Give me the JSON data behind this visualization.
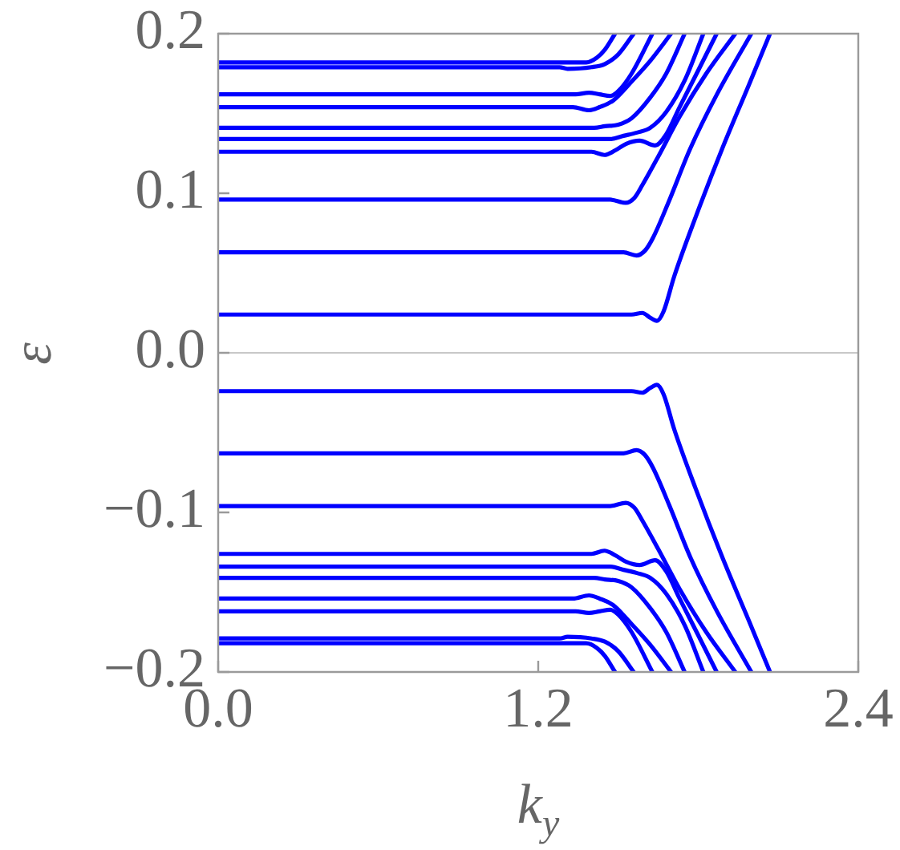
{
  "chart_data": {
    "type": "line",
    "xlabel": "k$_{y}$",
    "ylabel": "ε",
    "xlim": [
      0,
      2.4
    ],
    "ylim": [
      -0.2,
      0.2
    ],
    "xticks": [
      {
        "value": 0,
        "label": "0.0"
      },
      1.2,
      2.4
    ],
    "yticks": [
      {
        "value": -0.2,
        "label": "−0.2"
      },
      {
        "value": -0.1,
        "label": "−0.1"
      },
      {
        "value": 0,
        "label": "0.0"
      },
      0.1,
      0.2
    ],
    "ref_lines": [
      {
        "axis": "y",
        "value": 0,
        "color": "#c8c8c8"
      }
    ],
    "series": [
      {
        "color": "#0000ff",
        "x": [
          0,
          1.34,
          1.38,
          1.42,
          1.45,
          1.488
        ],
        "values": [
          0.182,
          0.182,
          0.182,
          0.185,
          0.19,
          0.2
        ]
      },
      {
        "color": "#0000ff",
        "x": [
          0,
          1.28,
          1.31,
          1.4,
          1.45,
          1.5,
          1.558
        ],
        "values": [
          0.179,
          0.179,
          0.178,
          0.179,
          0.181,
          0.187,
          0.2
        ]
      },
      {
        "color": "#0000ff",
        "x": [
          0,
          1.34,
          1.39,
          1.43,
          1.47,
          1.5,
          1.55,
          1.628
        ],
        "values": [
          0.162,
          0.162,
          0.163,
          0.162,
          0.161,
          0.164,
          0.175,
          0.2
        ]
      },
      {
        "color": "#0000ff",
        "x": [
          0,
          1.33,
          1.39,
          1.43,
          1.48,
          1.55,
          1.62,
          1.698
        ],
        "values": [
          0.154,
          0.154,
          0.152,
          0.154,
          0.158,
          0.17,
          0.183,
          0.2
        ]
      },
      {
        "color": "#0000ff",
        "x": [
          0,
          1.41,
          1.45,
          1.5,
          1.55,
          1.62,
          1.68,
          1.749
        ],
        "values": [
          0.141,
          0.141,
          0.142,
          0.143,
          0.147,
          0.16,
          0.175,
          0.2
        ]
      },
      {
        "color": "#0000ff",
        "x": [
          0,
          1.47,
          1.52,
          1.57,
          1.62,
          1.68,
          1.75,
          1.819
        ],
        "values": [
          0.134,
          0.134,
          0.136,
          0.138,
          0.141,
          0.151,
          0.171,
          0.2
        ]
      },
      {
        "color": "#0000ff",
        "x": [
          0,
          1.4,
          1.448,
          1.49,
          1.53,
          1.58,
          1.638,
          1.68,
          1.73,
          1.8,
          1.869
        ],
        "values": [
          0.126,
          0.126,
          0.124,
          0.127,
          0.131,
          0.133,
          0.13,
          0.137,
          0.154,
          0.177,
          0.2
        ]
      },
      {
        "color": "#0000ff",
        "x": [
          0,
          1.47,
          1.528,
          1.56,
          1.59,
          1.65,
          1.73,
          1.83,
          1.939
        ],
        "values": [
          0.096,
          0.096,
          0.094,
          0.097,
          0.105,
          0.123,
          0.148,
          0.175,
          0.2
        ]
      },
      {
        "color": "#0000ff",
        "x": [
          0,
          1.52,
          1.568,
          1.6,
          1.63,
          1.69,
          1.77,
          1.87,
          1.999
        ],
        "values": [
          0.063,
          0.063,
          0.061,
          0.064,
          0.072,
          0.095,
          0.128,
          0.162,
          0.2
        ]
      },
      {
        "color": "#0000ff",
        "x": [
          0,
          1.55,
          1.59,
          1.62,
          1.645,
          1.67,
          1.71,
          1.79,
          1.89,
          1.99,
          2.069
        ],
        "values": [
          0.024,
          0.024,
          0.025,
          0.022,
          0.02,
          0.026,
          0.048,
          0.085,
          0.128,
          0.168,
          0.2
        ]
      },
      {
        "color": "#0000ff",
        "x": [
          0,
          1.55,
          1.59,
          1.62,
          1.645,
          1.67,
          1.71,
          1.79,
          1.89,
          1.99,
          2.069
        ],
        "values": [
          -0.024,
          -0.024,
          -0.025,
          -0.022,
          -0.02,
          -0.026,
          -0.048,
          -0.085,
          -0.128,
          -0.168,
          -0.2
        ]
      },
      {
        "color": "#0000ff",
        "x": [
          0,
          1.52,
          1.568,
          1.6,
          1.63,
          1.69,
          1.77,
          1.87,
          1.999
        ],
        "values": [
          -0.063,
          -0.063,
          -0.061,
          -0.064,
          -0.072,
          -0.095,
          -0.128,
          -0.162,
          -0.2
        ]
      },
      {
        "color": "#0000ff",
        "x": [
          0,
          1.47,
          1.528,
          1.56,
          1.59,
          1.65,
          1.73,
          1.83,
          1.939
        ],
        "values": [
          -0.096,
          -0.096,
          -0.094,
          -0.097,
          -0.105,
          -0.123,
          -0.148,
          -0.175,
          -0.2
        ]
      },
      {
        "color": "#0000ff",
        "x": [
          0,
          1.4,
          1.448,
          1.49,
          1.53,
          1.58,
          1.638,
          1.68,
          1.73,
          1.8,
          1.869
        ],
        "values": [
          -0.126,
          -0.126,
          -0.124,
          -0.127,
          -0.131,
          -0.133,
          -0.13,
          -0.137,
          -0.154,
          -0.177,
          -0.2
        ]
      },
      {
        "color": "#0000ff",
        "x": [
          0,
          1.47,
          1.52,
          1.57,
          1.62,
          1.68,
          1.75,
          1.819
        ],
        "values": [
          -0.134,
          -0.134,
          -0.136,
          -0.138,
          -0.141,
          -0.151,
          -0.171,
          -0.2
        ]
      },
      {
        "color": "#0000ff",
        "x": [
          0,
          1.41,
          1.45,
          1.5,
          1.55,
          1.62,
          1.68,
          1.749
        ],
        "values": [
          -0.141,
          -0.141,
          -0.142,
          -0.143,
          -0.147,
          -0.16,
          -0.175,
          -0.2
        ]
      },
      {
        "color": "#0000ff",
        "x": [
          0,
          1.33,
          1.39,
          1.43,
          1.48,
          1.55,
          1.62,
          1.698
        ],
        "values": [
          -0.154,
          -0.154,
          -0.152,
          -0.154,
          -0.158,
          -0.17,
          -0.183,
          -0.2
        ]
      },
      {
        "color": "#0000ff",
        "x": [
          0,
          1.34,
          1.39,
          1.43,
          1.47,
          1.5,
          1.55,
          1.628
        ],
        "values": [
          -0.162,
          -0.162,
          -0.163,
          -0.162,
          -0.161,
          -0.164,
          -0.175,
          -0.2
        ]
      },
      {
        "color": "#0000ff",
        "x": [
          0,
          1.28,
          1.31,
          1.4,
          1.45,
          1.5,
          1.558
        ],
        "values": [
          -0.179,
          -0.179,
          -0.178,
          -0.179,
          -0.181,
          -0.187,
          -0.2
        ]
      },
      {
        "color": "#0000ff",
        "x": [
          0,
          1.34,
          1.38,
          1.42,
          1.45,
          1.488
        ],
        "values": [
          -0.182,
          -0.182,
          -0.182,
          -0.185,
          -0.19,
          -0.2
        ]
      }
    ]
  }
}
